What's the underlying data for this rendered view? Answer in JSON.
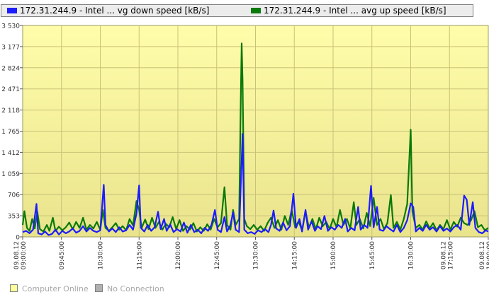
{
  "chart_data": {
    "type": "line",
    "title": "",
    "xlabel": "",
    "ylabel": "",
    "ylim": [
      0,
      3530
    ],
    "y_ticks": [
      0,
      353,
      706,
      1059,
      1412,
      1765,
      2118,
      2471,
      2824,
      3177,
      3530
    ],
    "y_tick_labels": [
      "0",
      "353",
      "706",
      "1 059",
      "1 412",
      "1 765",
      "2 118",
      "2 471",
      "2 824",
      "3 177",
      "3 530"
    ],
    "x_range": [
      "09:00:00",
      "18:00:00"
    ],
    "x_ticks": [
      "09.08.12 09:00:00",
      "09:45:00",
      "10:30:00",
      "11:15:00",
      "12:00:00",
      "12:45:00",
      "13:30:00",
      "14:15:00",
      "15:00:00",
      "15:45:00",
      "16:30:00",
      "09.08.12 17:15:00",
      "09.08.12 18:00:00"
    ],
    "grid": true,
    "legend_position": "top",
    "series": [
      {
        "name": "172.31.244.9 - Intel ... vg down speed [kB/s]",
        "color": "#1c1cff",
        "points": [
          [
            "09:00",
            80
          ],
          [
            "09:04",
            100
          ],
          [
            "09:08",
            60
          ],
          [
            "09:12",
            120
          ],
          [
            "09:16",
            550
          ],
          [
            "09:18",
            60
          ],
          [
            "09:22",
            40
          ],
          [
            "09:26",
            90
          ],
          [
            "09:30",
            30
          ],
          [
            "09:34",
            50
          ],
          [
            "09:38",
            120
          ],
          [
            "09:42",
            40
          ],
          [
            "09:46",
            100
          ],
          [
            "09:50",
            60
          ],
          [
            "09:54",
            90
          ],
          [
            "09:58",
            140
          ],
          [
            "10:02",
            70
          ],
          [
            "10:06",
            100
          ],
          [
            "10:10",
            180
          ],
          [
            "10:14",
            90
          ],
          [
            "10:18",
            150
          ],
          [
            "10:22",
            100
          ],
          [
            "10:26",
            80
          ],
          [
            "10:30",
            110
          ],
          [
            "10:34",
            870
          ],
          [
            "10:36",
            200
          ],
          [
            "10:40",
            90
          ],
          [
            "10:44",
            140
          ],
          [
            "10:48",
            80
          ],
          [
            "10:52",
            160
          ],
          [
            "10:56",
            90
          ],
          [
            "11:00",
            110
          ],
          [
            "11:04",
            200
          ],
          [
            "11:08",
            120
          ],
          [
            "11:12",
            390
          ],
          [
            "11:15",
            860
          ],
          [
            "11:17",
            150
          ],
          [
            "11:21",
            90
          ],
          [
            "11:25",
            200
          ],
          [
            "11:29",
            100
          ],
          [
            "11:33",
            160
          ],
          [
            "11:37",
            420
          ],
          [
            "11:40",
            130
          ],
          [
            "11:44",
            300
          ],
          [
            "11:47",
            100
          ],
          [
            "11:51",
            210
          ],
          [
            "11:55",
            80
          ],
          [
            "11:59",
            130
          ],
          [
            "12:03",
            90
          ],
          [
            "12:07",
            240
          ],
          [
            "12:11",
            70
          ],
          [
            "12:15",
            200
          ],
          [
            "12:19",
            80
          ],
          [
            "12:23",
            120
          ],
          [
            "12:27",
            60
          ],
          [
            "12:31",
            150
          ],
          [
            "12:35",
            100
          ],
          [
            "12:39",
            200
          ],
          [
            "12:43",
            450
          ],
          [
            "12:46",
            120
          ],
          [
            "12:50",
            80
          ],
          [
            "12:54",
            330
          ],
          [
            "12:57",
            90
          ],
          [
            "13:01",
            200
          ],
          [
            "13:04",
            410
          ],
          [
            "13:07",
            120
          ],
          [
            "13:11",
            80
          ],
          [
            "13:15",
            1720
          ],
          [
            "13:17",
            120
          ],
          [
            "13:21",
            60
          ],
          [
            "13:25",
            80
          ],
          [
            "13:29",
            50
          ],
          [
            "13:33",
            110
          ],
          [
            "13:37",
            80
          ],
          [
            "13:41",
            130
          ],
          [
            "13:45",
            80
          ],
          [
            "13:48",
            200
          ],
          [
            "13:51",
            440
          ],
          [
            "13:54",
            140
          ],
          [
            "13:58",
            100
          ],
          [
            "14:02",
            240
          ],
          [
            "14:06",
            110
          ],
          [
            "14:10",
            180
          ],
          [
            "14:14",
            720
          ],
          [
            "14:17",
            150
          ],
          [
            "14:21",
            300
          ],
          [
            "14:24",
            90
          ],
          [
            "14:28",
            450
          ],
          [
            "14:31",
            120
          ],
          [
            "14:35",
            260
          ],
          [
            "14:39",
            100
          ],
          [
            "14:42",
            180
          ],
          [
            "14:46",
            130
          ],
          [
            "14:50",
            350
          ],
          [
            "14:54",
            100
          ],
          [
            "14:58",
            160
          ],
          [
            "15:02",
            120
          ],
          [
            "15:06",
            200
          ],
          [
            "15:10",
            150
          ],
          [
            "15:14",
            300
          ],
          [
            "15:17",
            90
          ],
          [
            "15:21",
            150
          ],
          [
            "15:25",
            110
          ],
          [
            "15:29",
            500
          ],
          [
            "15:32",
            120
          ],
          [
            "15:36",
            200
          ],
          [
            "15:40",
            150
          ],
          [
            "15:44",
            850
          ],
          [
            "15:47",
            160
          ],
          [
            "15:51",
            500
          ],
          [
            "15:54",
            120
          ],
          [
            "15:58",
            100
          ],
          [
            "16:02",
            180
          ],
          [
            "16:06",
            130
          ],
          [
            "16:10",
            90
          ],
          [
            "16:14",
            200
          ],
          [
            "16:18",
            80
          ],
          [
            "16:22",
            150
          ],
          [
            "16:26",
            280
          ],
          [
            "16:30",
            560
          ],
          [
            "16:33",
            500
          ],
          [
            "16:36",
            90
          ],
          [
            "16:40",
            150
          ],
          [
            "16:44",
            100
          ],
          [
            "16:48",
            200
          ],
          [
            "16:52",
            120
          ],
          [
            "16:56",
            160
          ],
          [
            "17:00",
            90
          ],
          [
            "17:04",
            180
          ],
          [
            "17:08",
            100
          ],
          [
            "17:12",
            140
          ],
          [
            "17:16",
            90
          ],
          [
            "17:20",
            160
          ],
          [
            "17:24",
            200
          ],
          [
            "17:28",
            120
          ],
          [
            "17:32",
            690
          ],
          [
            "17:35",
            620
          ],
          [
            "17:38",
            200
          ],
          [
            "17:42",
            580
          ],
          [
            "17:45",
            150
          ],
          [
            "17:49",
            80
          ],
          [
            "17:53",
            60
          ],
          [
            "17:57",
            110
          ],
          [
            "18:00",
            90
          ]
        ]
      },
      {
        "name": "172.31.244.9 - Intel ...  avg up speed [kB/s]",
        "color": "#0a7a0a",
        "points": [
          [
            "09:00",
            200
          ],
          [
            "09:02",
            430
          ],
          [
            "09:05",
            150
          ],
          [
            "09:08",
            100
          ],
          [
            "09:11",
            300
          ],
          [
            "09:14",
            140
          ],
          [
            "09:17",
            420
          ],
          [
            "09:20",
            130
          ],
          [
            "09:24",
            90
          ],
          [
            "09:28",
            200
          ],
          [
            "09:31",
            100
          ],
          [
            "09:35",
            320
          ],
          [
            "09:38",
            100
          ],
          [
            "09:42",
            170
          ],
          [
            "09:46",
            110
          ],
          [
            "09:50",
            160
          ],
          [
            "09:54",
            240
          ],
          [
            "09:58",
            130
          ],
          [
            "10:02",
            250
          ],
          [
            "10:06",
            150
          ],
          [
            "10:10",
            320
          ],
          [
            "10:14",
            120
          ],
          [
            "10:18",
            200
          ],
          [
            "10:22",
            140
          ],
          [
            "10:26",
            250
          ],
          [
            "10:30",
            120
          ],
          [
            "10:33",
            450
          ],
          [
            "10:36",
            150
          ],
          [
            "10:40",
            100
          ],
          [
            "10:44",
            160
          ],
          [
            "10:48",
            230
          ],
          [
            "10:52",
            120
          ],
          [
            "10:56",
            180
          ],
          [
            "11:00",
            110
          ],
          [
            "11:04",
            300
          ],
          [
            "11:08",
            190
          ],
          [
            "11:12",
            600
          ],
          [
            "11:15",
            450
          ],
          [
            "11:18",
            150
          ],
          [
            "11:22",
            290
          ],
          [
            "11:26",
            130
          ],
          [
            "11:30",
            320
          ],
          [
            "11:34",
            150
          ],
          [
            "11:38",
            250
          ],
          [
            "11:42",
            120
          ],
          [
            "11:46",
            220
          ],
          [
            "11:50",
            160
          ],
          [
            "11:54",
            330
          ],
          [
            "11:58",
            130
          ],
          [
            "12:02",
            280
          ],
          [
            "12:06",
            100
          ],
          [
            "12:10",
            180
          ],
          [
            "12:14",
            120
          ],
          [
            "12:18",
            230
          ],
          [
            "12:22",
            90
          ],
          [
            "12:26",
            160
          ],
          [
            "12:30",
            100
          ],
          [
            "12:34",
            210
          ],
          [
            "12:38",
            120
          ],
          [
            "12:42",
            300
          ],
          [
            "12:46",
            160
          ],
          [
            "12:50",
            230
          ],
          [
            "12:54",
            830
          ],
          [
            "12:57",
            200
          ],
          [
            "13:01",
            120
          ],
          [
            "13:04",
            450
          ],
          [
            "13:07",
            200
          ],
          [
            "13:11",
            300
          ],
          [
            "13:13",
            2350
          ],
          [
            "13:14",
            3230
          ],
          [
            "13:15",
            2600
          ],
          [
            "13:17",
            300
          ],
          [
            "13:20",
            180
          ],
          [
            "13:24",
            130
          ],
          [
            "13:28",
            200
          ],
          [
            "13:32",
            120
          ],
          [
            "13:36",
            180
          ],
          [
            "13:40",
            100
          ],
          [
            "13:44",
            230
          ],
          [
            "13:48",
            320
          ],
          [
            "13:52",
            150
          ],
          [
            "13:56",
            280
          ],
          [
            "14:00",
            120
          ],
          [
            "14:04",
            350
          ],
          [
            "14:08",
            200
          ],
          [
            "14:12",
            450
          ],
          [
            "14:16",
            160
          ],
          [
            "14:20",
            260
          ],
          [
            "14:24",
            110
          ],
          [
            "14:28",
            430
          ],
          [
            "14:32",
            150
          ],
          [
            "14:36",
            300
          ],
          [
            "14:40",
            130
          ],
          [
            "14:44",
            320
          ],
          [
            "14:48",
            180
          ],
          [
            "14:52",
            250
          ],
          [
            "14:56",
            130
          ],
          [
            "15:00",
            300
          ],
          [
            "15:04",
            160
          ],
          [
            "15:08",
            450
          ],
          [
            "15:12",
            200
          ],
          [
            "15:16",
            300
          ],
          [
            "15:20",
            140
          ],
          [
            "15:24",
            580
          ],
          [
            "15:27",
            200
          ],
          [
            "15:31",
            300
          ],
          [
            "15:35",
            140
          ],
          [
            "15:39",
            400
          ],
          [
            "15:43",
            180
          ],
          [
            "15:47",
            650
          ],
          [
            "15:51",
            200
          ],
          [
            "15:55",
            300
          ],
          [
            "15:59",
            130
          ],
          [
            "16:03",
            230
          ],
          [
            "16:07",
            700
          ],
          [
            "16:10",
            150
          ],
          [
            "16:14",
            250
          ],
          [
            "16:18",
            120
          ],
          [
            "16:22",
            300
          ],
          [
            "16:26",
            550
          ],
          [
            "16:30",
            1790
          ],
          [
            "16:32",
            420
          ],
          [
            "16:36",
            150
          ],
          [
            "16:40",
            200
          ],
          [
            "16:44",
            120
          ],
          [
            "16:48",
            260
          ],
          [
            "16:52",
            140
          ],
          [
            "16:56",
            230
          ],
          [
            "17:00",
            110
          ],
          [
            "17:04",
            200
          ],
          [
            "17:08",
            130
          ],
          [
            "17:12",
            280
          ],
          [
            "17:16",
            120
          ],
          [
            "17:20",
            250
          ],
          [
            "17:24",
            170
          ],
          [
            "17:28",
            320
          ],
          [
            "17:32",
            230
          ],
          [
            "17:36",
            200
          ],
          [
            "17:40",
            280
          ],
          [
            "17:44",
            430
          ],
          [
            "17:48",
            160
          ],
          [
            "17:52",
            200
          ],
          [
            "17:56",
            110
          ],
          [
            "18:00",
            150
          ]
        ]
      }
    ]
  },
  "status": {
    "online_label": "Computer Online",
    "no_connection_label": "No Connection",
    "online_color": "#ffff99",
    "no_connection_color": "#b0b0b0"
  }
}
